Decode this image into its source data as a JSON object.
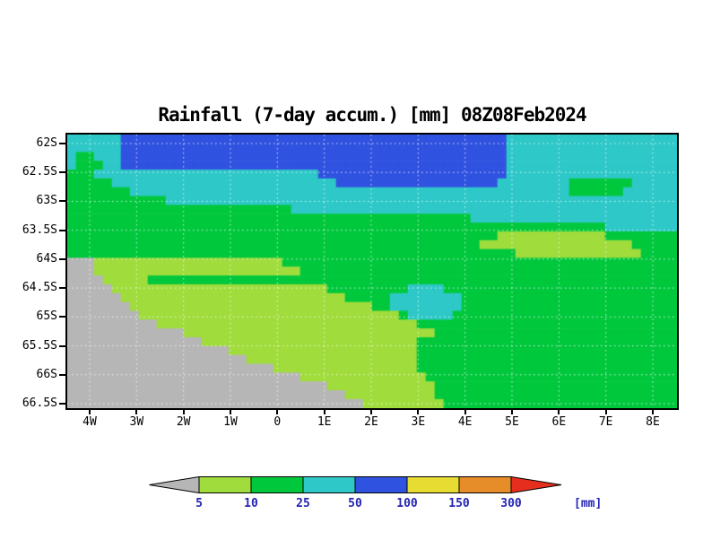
{
  "title": "Rainfall (7-day accum.) [mm] 08Z08Feb2024",
  "chart_data": {
    "type": "heatmap",
    "title": "Rainfall (7-day accum.) [mm] 08Z08Feb2024",
    "x_ticks": [
      "4W",
      "3W",
      "2W",
      "1W",
      "0",
      "1E",
      "2E",
      "3E",
      "4E",
      "5E",
      "6E",
      "7E",
      "8E"
    ],
    "y_ticks": [
      "62S",
      "62.5S",
      "63S",
      "63.5S",
      "64S",
      "64.5S",
      "65S",
      "65.5S",
      "66S",
      "66.5S"
    ],
    "levels_mm": [
      5,
      10,
      25,
      50,
      100,
      150,
      300
    ],
    "categories": {
      "A": "below 5 mm (gray)",
      "L": "5-10 mm (light green)",
      "G": "10-25 mm (green)",
      "C": "25-50 mm (cyan)",
      "B": "50-100 mm (blue)",
      "Y": "100-150 mm (yellow)",
      "O": "150-300 mm (orange)",
      "R": "above 300 mm (red)"
    },
    "colors": {
      "A": "#b6b6b6",
      "L": "#a0dc3c",
      "G": "#00c83c",
      "C": "#2ec8c8",
      "B": "#3052e0",
      "Y": "#e6dc32",
      "O": "#e68c28",
      "R": "#e62e1e"
    },
    "grid_cols": 68,
    "grid_rows": 31,
    "grid_rle": [
      "6C 43B 19C",
      "6C 43B 19C",
      "1C 2G 3C 43B 19C",
      "1C 3G 2C 43B 19C",
      "3G 25C 21B 19C",
      "5G 25C 18B 8C 7G 5C",
      "7G 49C 6G 6C",
      "11G 57C",
      "25G 43C",
      "45G 23C",
      "60G 8C",
      "48G 12L 8G",
      "46G 17L 5G",
      "50G 14L 4G",
      "3A 21L 44G",
      "3A 23L 42G",
      "4A 5L 59G",
      "5A 24L 9G 4C 26G",
      "6A 25L 5G 8C 24G",
      "7A 27L 2G 8C 24G",
      "8A 29L 1G 5C 25G",
      "10A 29L 29G",
      "13A 28L 27G",
      "15A 24L 29G",
      "18A 21L 29G",
      "20A 19L 29G",
      "23A 16L 29G",
      "26A 14L 28G",
      "29A 12L 27G",
      "31A 10L 27G",
      "33A 9L 26G"
    ]
  },
  "colorbar": {
    "segments": [
      "A",
      "L",
      "G",
      "C",
      "B",
      "Y",
      "O",
      "R"
    ],
    "labels": [
      "5",
      "10",
      "25",
      "50",
      "100",
      "150",
      "300"
    ],
    "unit": "[mm]",
    "label_color": "#2424b4"
  }
}
